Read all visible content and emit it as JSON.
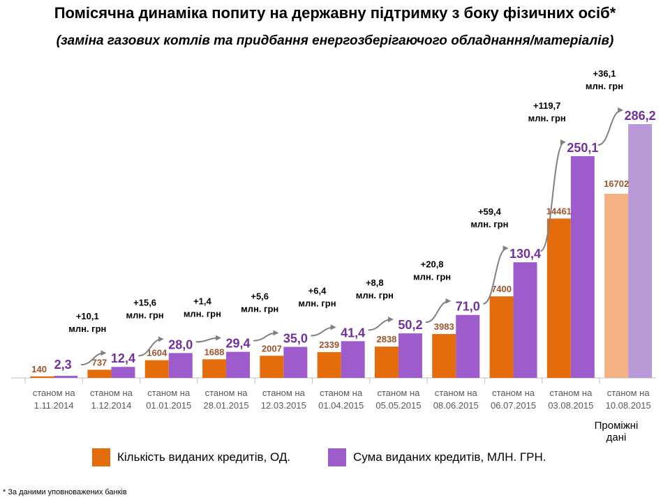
{
  "title": "Помісячна динаміка попиту на державну підтримку з боку фізичних осіб*",
  "subtitle": "(заміна газових котлів  та  придбання енергозберігаючого обладнання/матеріалів)",
  "footnote": "* За даними уповноважених банків",
  "interim_note": "Проміжні дані",
  "colors": {
    "count": "#E46C0A",
    "sum": "#9E5BCC",
    "count_interim": "#F4B183",
    "sum_interim": "#B99AD6",
    "count_label": "#A0522D",
    "sum_label": "#7030A0",
    "arrow": "#808080"
  },
  "legend": [
    {
      "label": "Кількість виданих кредитів, ОД."
    },
    {
      "label": "Сума виданих кредитів, МЛН. ГРН."
    }
  ],
  "chart_data": {
    "type": "bar",
    "categories": [
      [
        "станом на",
        "1.11.2014"
      ],
      [
        "станом на",
        "1.12.2014"
      ],
      [
        "станом на",
        "01.01.2015"
      ],
      [
        "станом на",
        "28.01.2015"
      ],
      [
        "станом на",
        "12.03.2015"
      ],
      [
        "станом на",
        "01.04.2015"
      ],
      [
        "станом на",
        "05.05.2015"
      ],
      [
        "станом на",
        "08.06.2015"
      ],
      [
        "станом на",
        "06.07.2015"
      ],
      [
        "станом на",
        "03.08.2015"
      ],
      [
        "станом на",
        "10.08.2015"
      ]
    ],
    "series": [
      {
        "name": "Кількість виданих кредитів, ОД.",
        "values": [
          140,
          737,
          1604,
          1688,
          2007,
          2339,
          2838,
          3983,
          7400,
          14461,
          16702
        ],
        "labels": [
          "140",
          "737",
          "1604",
          "1688",
          "2007",
          "2339",
          "2838",
          "3983",
          "7400",
          "14461",
          "16702"
        ]
      },
      {
        "name": "Сума виданих кредитів, МЛН. ГРН.",
        "values": [
          2.3,
          12.4,
          28.0,
          29.4,
          35.0,
          41.4,
          50.2,
          71.0,
          130.4,
          250.1,
          286.2
        ],
        "labels": [
          "2,3",
          "12,4",
          "28,0",
          "29,4",
          "35,0",
          "41,4",
          "50,2",
          "71,0",
          "130,4",
          "250,1",
          "286,2"
        ]
      }
    ],
    "increments": [
      [
        "+10,1",
        "млн. грн"
      ],
      [
        "+15,6",
        "млн. грн"
      ],
      [
        "+1,4",
        "млн. грн"
      ],
      [
        "+5,6",
        "млн. грн"
      ],
      [
        "+6,4",
        "млн. грн"
      ],
      [
        "+8,8",
        "млн. грн"
      ],
      [
        "+20,8",
        "млн. грн"
      ],
      [
        "+59,4",
        "млн. грн"
      ],
      [
        "+119,7",
        "млн. грн"
      ],
      [
        "+36,1",
        "млн. грн"
      ]
    ],
    "interim_index": 10
  }
}
